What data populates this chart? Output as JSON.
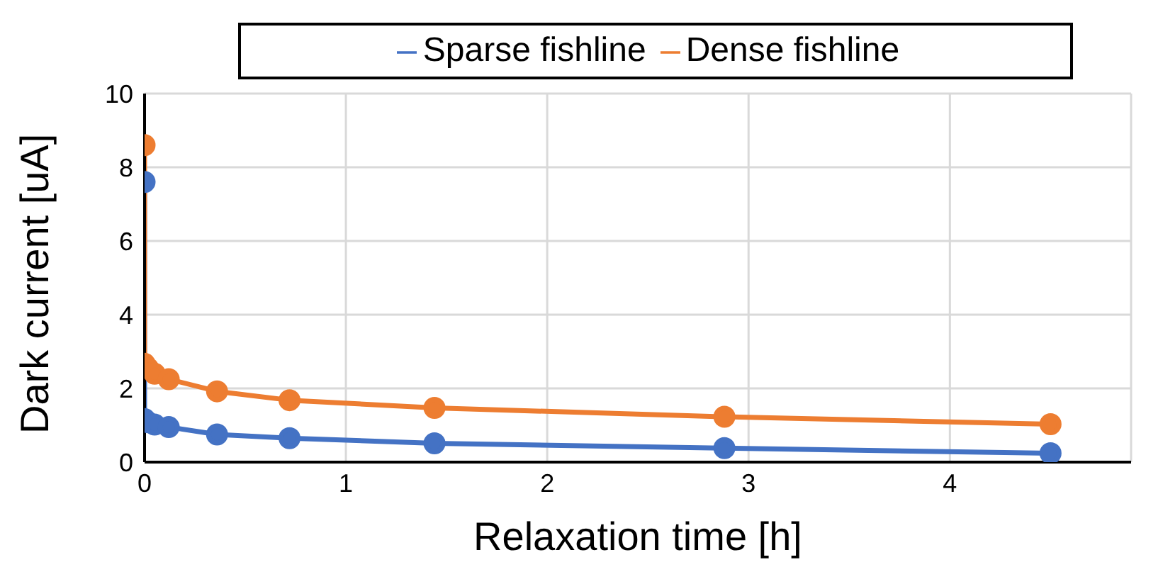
{
  "chart_data": {
    "type": "line",
    "xlabel": "Relaxation time [h]",
    "ylabel": "Dark current [uA]",
    "xlim": [
      0,
      4.9
    ],
    "xticks": [
      0,
      1,
      2,
      3,
      4
    ],
    "ylim": [
      0,
      10
    ],
    "yticks": [
      0,
      2,
      4,
      6,
      8,
      10
    ],
    "grid": true,
    "legend": "top",
    "marker": "circle",
    "line_style": "solid",
    "series": [
      {
        "name": "Sparse fishline",
        "color": "#4472c4",
        "x": [
          0,
          0,
          0.017,
          0.05,
          0.12,
          0.36,
          0.72,
          1.44,
          2.88,
          4.5
        ],
        "values": [
          7.6,
          1.17,
          1.08,
          1.02,
          0.95,
          0.75,
          0.65,
          0.51,
          0.38,
          0.24
        ]
      },
      {
        "name": "Dense fishline",
        "color": "#ed7d31",
        "x": [
          0,
          0,
          0.017,
          0.05,
          0.12,
          0.36,
          0.72,
          1.44,
          2.88,
          4.5
        ],
        "values": [
          8.6,
          2.67,
          2.55,
          2.4,
          2.25,
          1.92,
          1.68,
          1.47,
          1.23,
          1.03
        ]
      }
    ]
  }
}
